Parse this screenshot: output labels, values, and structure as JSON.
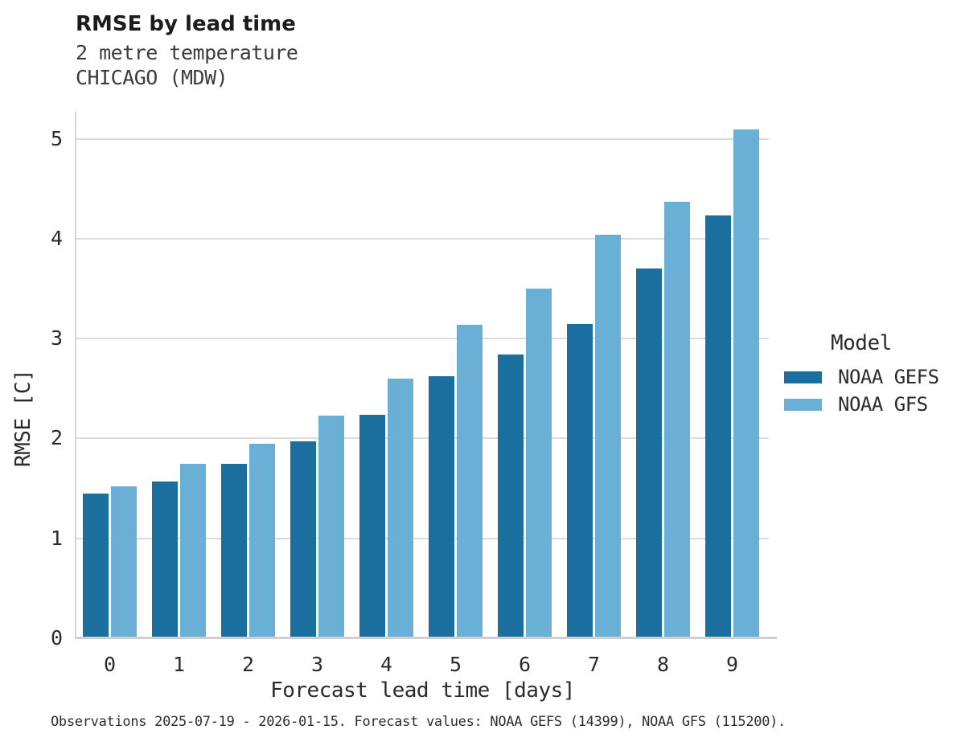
{
  "header": {
    "title": "RMSE by lead time",
    "subtitle_line1": "2 metre temperature",
    "subtitle_line2": "CHICAGO (MDW)"
  },
  "chart_data": {
    "type": "bar",
    "title": "RMSE by lead time",
    "subtitle": "2 metre temperature — CHICAGO (MDW)",
    "xlabel": "Forecast lead time [days]",
    "ylabel": "RMSE [C]",
    "categories": [
      "0",
      "1",
      "2",
      "3",
      "4",
      "5",
      "6",
      "7",
      "8",
      "9"
    ],
    "series": [
      {
        "name": "NOAA GEFS",
        "color": "#1A6F9E",
        "values": [
          1.45,
          1.57,
          1.75,
          1.97,
          2.24,
          2.62,
          2.84,
          3.15,
          3.7,
          4.23
        ]
      },
      {
        "name": "NOAA GFS",
        "color": "#69AFD6",
        "values": [
          1.52,
          1.75,
          1.95,
          2.23,
          2.6,
          3.14,
          3.5,
          4.04,
          4.37,
          5.09
        ]
      }
    ],
    "ylim": [
      0,
      5.27
    ],
    "yticks": [
      0,
      1,
      2,
      3,
      4,
      5
    ],
    "grid": "horizontal-only",
    "legend_position": "center-right"
  },
  "legend": {
    "title": "Model"
  },
  "footer": {
    "caption": "Observations 2025-07-19 - 2026-01-15. Forecast values: NOAA GEFS (14399), NOAA GFS (115200)."
  },
  "colors": {
    "gefs_bar": "#1A6F9E",
    "gfs_bar": "#69AFD6",
    "gridline": "#DCDCDC",
    "spine": "#D0D0D0",
    "text": "#2B2B2B"
  }
}
